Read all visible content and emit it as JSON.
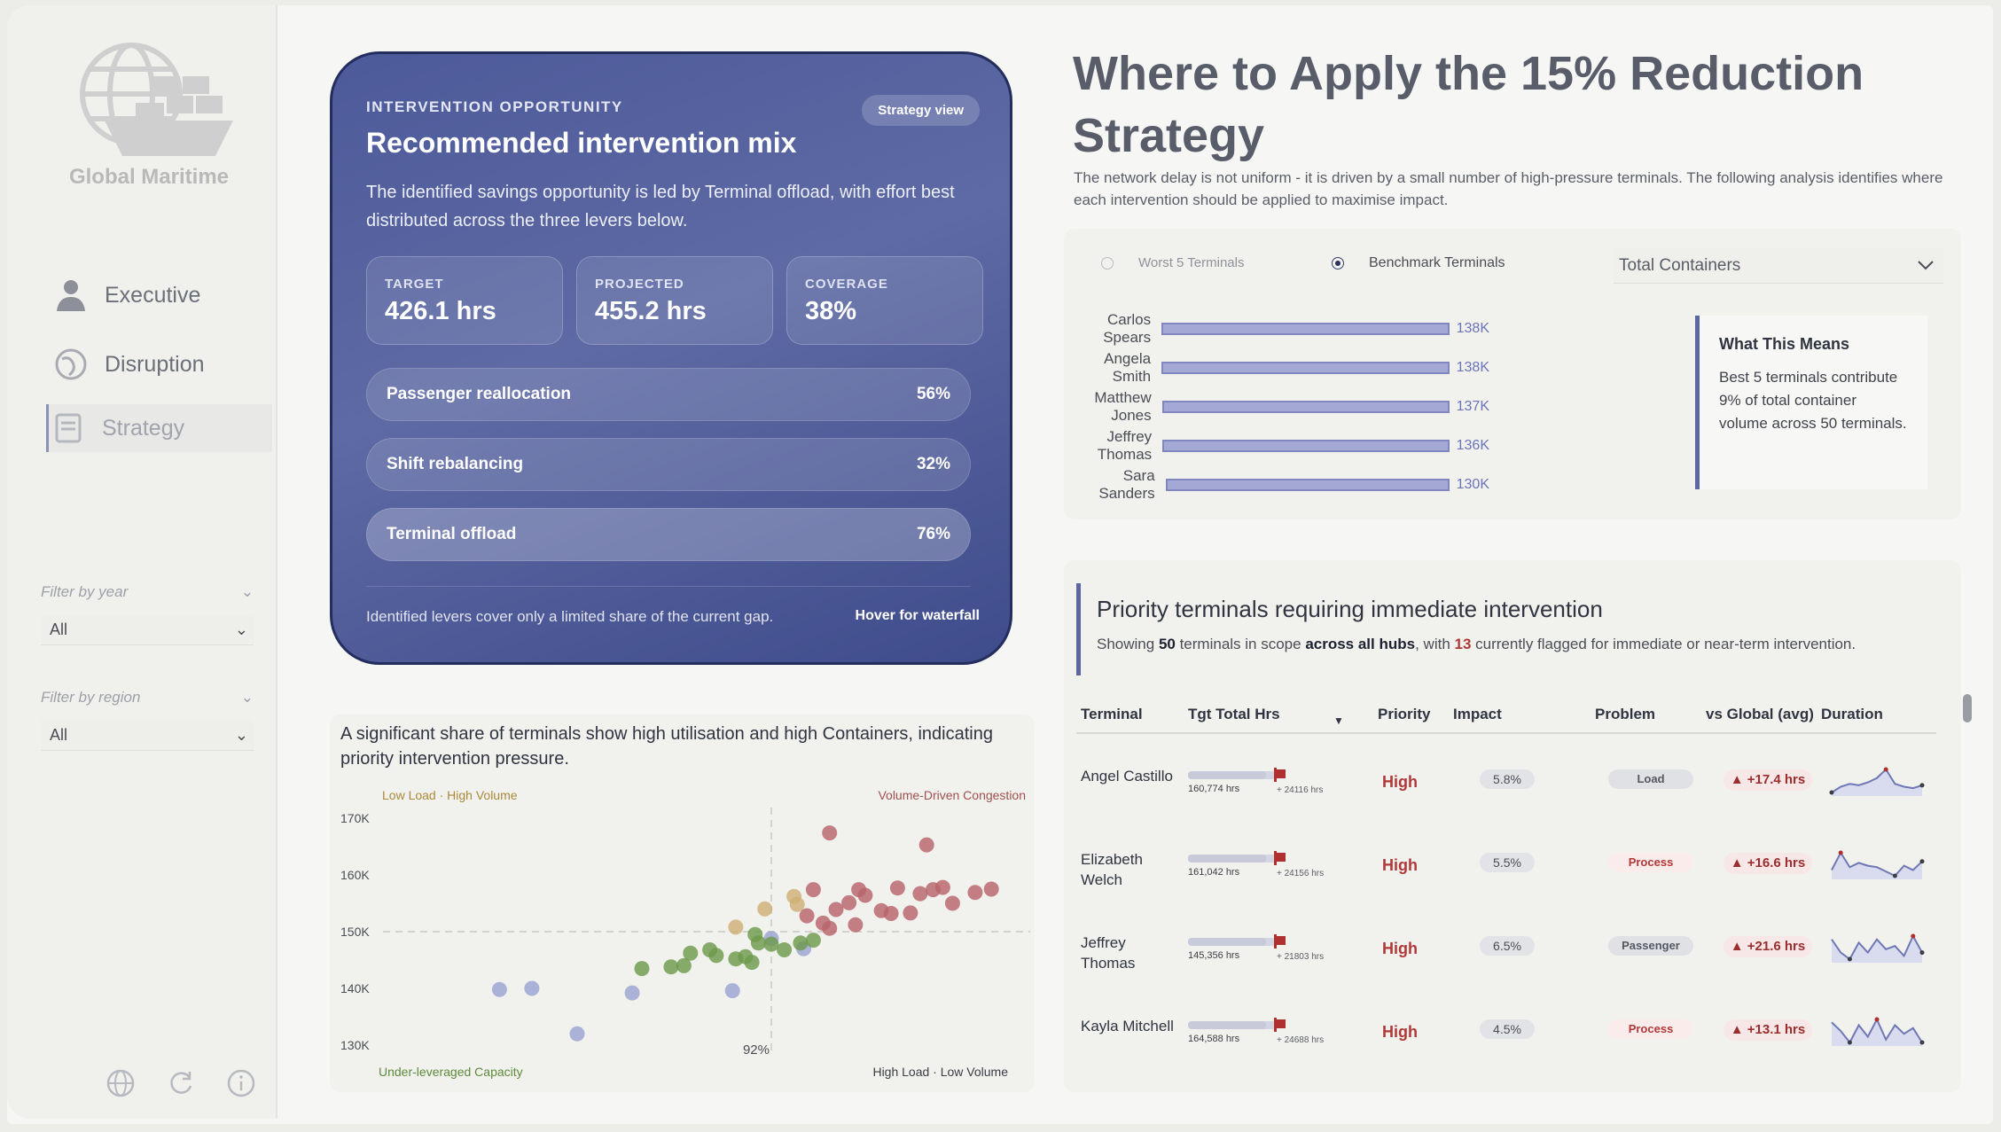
{
  "sidebar": {
    "brand": "Global Maritime",
    "nav": [
      {
        "label": "Executive",
        "icon": "person-icon"
      },
      {
        "label": "Disruption",
        "icon": "globe-icon"
      },
      {
        "label": "Strategy",
        "icon": "document-icon",
        "active": true
      }
    ],
    "filters": [
      {
        "label": "Filter by year",
        "value": "All"
      },
      {
        "label": "Filter by region",
        "value": "All"
      }
    ]
  },
  "intervention": {
    "kicker": "INTERVENTION OPPORTUNITY",
    "badge": "Strategy view",
    "title": "Recommended intervention mix",
    "description": "The identified savings opportunity is led by Terminal offload, with effort best distributed across the three levers below.",
    "kpis": [
      {
        "label": "TARGET",
        "value": "426.1 hrs"
      },
      {
        "label": "PROJECTED",
        "value": "455.2 hrs"
      },
      {
        "label": "COVERAGE",
        "value": "38%"
      }
    ],
    "levers": [
      {
        "label": "Passenger reallocation",
        "value": "56%"
      },
      {
        "label": "Shift rebalancing",
        "value": "32%"
      },
      {
        "label": "Terminal offload",
        "value": "76%"
      }
    ],
    "footnote": "Identified levers cover only a limited share of the current gap.",
    "footlink": "Hover for waterfall"
  },
  "scatter_title": "A significant share of terminals show high utilisation and high Containers, indicating priority intervention pressure.",
  "chart_data": {
    "type": "scatter",
    "quadrants": {
      "top_left": "Low Load · High Volume",
      "top_right": "Volume-Driven Congestion",
      "bottom_left": "Under-leveraged Capacity",
      "bottom_right": "High Load · Low Volume"
    },
    "y_ticks": [
      "170K",
      "160K",
      "150K",
      "140K",
      "130K"
    ],
    "ylim": [
      130000,
      170000
    ],
    "xlim": [
      80,
      100
    ],
    "threshold_x_label": "92%",
    "threshold_x": 92,
    "threshold_y": 150000,
    "colors": {
      "blue": "#9aa3d2",
      "green": "#6e9a4c",
      "gold": "#cfb078",
      "red": "#b8646c"
    },
    "points": [
      {
        "x": 83.6,
        "y": 139800,
        "c": "blue"
      },
      {
        "x": 84.6,
        "y": 140000,
        "c": "blue"
      },
      {
        "x": 86.0,
        "y": 132000,
        "c": "blue"
      },
      {
        "x": 87.7,
        "y": 139200,
        "c": "blue"
      },
      {
        "x": 90.8,
        "y": 139600,
        "c": "blue"
      },
      {
        "x": 92.0,
        "y": 148800,
        "c": "blue"
      },
      {
        "x": 93.0,
        "y": 147000,
        "c": "blue"
      },
      {
        "x": 88.0,
        "y": 143500,
        "c": "green"
      },
      {
        "x": 88.9,
        "y": 143800,
        "c": "green"
      },
      {
        "x": 89.3,
        "y": 144000,
        "c": "green"
      },
      {
        "x": 89.5,
        "y": 146200,
        "c": "green"
      },
      {
        "x": 90.1,
        "y": 146800,
        "c": "green"
      },
      {
        "x": 90.3,
        "y": 145800,
        "c": "green"
      },
      {
        "x": 90.9,
        "y": 145200,
        "c": "green"
      },
      {
        "x": 91.2,
        "y": 145600,
        "c": "green"
      },
      {
        "x": 91.4,
        "y": 144600,
        "c": "green"
      },
      {
        "x": 91.6,
        "y": 148000,
        "c": "green"
      },
      {
        "x": 91.5,
        "y": 149500,
        "c": "green"
      },
      {
        "x": 92.0,
        "y": 147800,
        "c": "green"
      },
      {
        "x": 92.4,
        "y": 146800,
        "c": "green"
      },
      {
        "x": 92.9,
        "y": 148000,
        "c": "green"
      },
      {
        "x": 93.3,
        "y": 148500,
        "c": "green"
      },
      {
        "x": 90.9,
        "y": 150800,
        "c": "gold"
      },
      {
        "x": 91.8,
        "y": 154000,
        "c": "gold"
      },
      {
        "x": 92.7,
        "y": 156200,
        "c": "gold"
      },
      {
        "x": 92.8,
        "y": 154800,
        "c": "gold"
      },
      {
        "x": 93.1,
        "y": 152800,
        "c": "red"
      },
      {
        "x": 93.3,
        "y": 157400,
        "c": "red"
      },
      {
        "x": 93.6,
        "y": 151500,
        "c": "red"
      },
      {
        "x": 93.8,
        "y": 150600,
        "c": "red"
      },
      {
        "x": 94.0,
        "y": 153900,
        "c": "red"
      },
      {
        "x": 94.4,
        "y": 155100,
        "c": "red"
      },
      {
        "x": 94.6,
        "y": 151200,
        "c": "red"
      },
      {
        "x": 94.7,
        "y": 157400,
        "c": "red"
      },
      {
        "x": 94.9,
        "y": 156400,
        "c": "red"
      },
      {
        "x": 95.4,
        "y": 153700,
        "c": "red"
      },
      {
        "x": 95.7,
        "y": 153200,
        "c": "red"
      },
      {
        "x": 95.9,
        "y": 157700,
        "c": "red"
      },
      {
        "x": 96.3,
        "y": 153300,
        "c": "red"
      },
      {
        "x": 96.6,
        "y": 156700,
        "c": "red"
      },
      {
        "x": 97.0,
        "y": 157400,
        "c": "red"
      },
      {
        "x": 97.3,
        "y": 157800,
        "c": "red"
      },
      {
        "x": 97.6,
        "y": 155000,
        "c": "red"
      },
      {
        "x": 98.3,
        "y": 156900,
        "c": "red"
      },
      {
        "x": 98.8,
        "y": 157500,
        "c": "red"
      },
      {
        "x": 93.8,
        "y": 167400,
        "c": "red"
      },
      {
        "x": 96.8,
        "y": 165300,
        "c": "red"
      }
    ]
  },
  "header": {
    "title": "Where to Apply the 15% Reduction Strategy",
    "subtitle": "The network delay is not uniform - it is driven by a small number of high-pressure terminals.   The following analysis identifies where each intervention should be applied to maximise impact."
  },
  "benchmark": {
    "options": [
      {
        "label": "Worst 5 Terminals",
        "selected": false
      },
      {
        "label": "Benchmark Terminals",
        "selected": true
      }
    ],
    "metric": "Total Containers",
    "bars_max": 138,
    "bars": [
      {
        "name": "Carlos Spears",
        "value": 138,
        "label": "138K"
      },
      {
        "name": "Angela Smith",
        "value": 138,
        "label": "138K"
      },
      {
        "name": "Matthew Jones",
        "value": 137,
        "label": "137K"
      },
      {
        "name": "Jeffrey Thomas",
        "value": 136,
        "label": "136K"
      },
      {
        "name": "Sara Sanders",
        "value": 130,
        "label": "130K"
      }
    ],
    "means_title": "What This Means",
    "means_text": "Best 5 terminals contribute 9% of total container volume across 50 terminals."
  },
  "priority": {
    "title": "Priority terminals requiring immediate intervention",
    "sub_1": "Showing ",
    "sub_count": "50",
    "sub_2": " terminals in scope ",
    "sub_scope": "across all hubs",
    "sub_3": ", with ",
    "sub_flagged": "13",
    "sub_4": " currently flagged for immediate or near-term intervention.",
    "columns": [
      "Terminal",
      "Tgt Total Hrs",
      "Priority",
      "Impact",
      "Problem",
      "vs Global (avg)",
      "Duration"
    ],
    "rows": [
      {
        "terminal": "Angel Castillo",
        "hrs": "160,774 hrs",
        "plus": "+ 24116 hrs",
        "priority": "High",
        "impact": "5.8%",
        "problem": "Load",
        "ptype": "grey",
        "vs": "▲ +17.4 hrs",
        "spark": [
          8,
          12,
          14,
          13,
          15,
          18,
          24,
          14,
          12,
          11,
          13
        ]
      },
      {
        "terminal": "Elizabeth Welch",
        "hrs": "161,042 hrs",
        "plus": "+ 24156 hrs",
        "priority": "High",
        "impact": "5.5%",
        "problem": "Process",
        "ptype": "pink",
        "vs": "▲ +16.6 hrs",
        "spark": [
          12,
          24,
          14,
          17,
          15,
          14,
          11,
          8,
          15,
          12,
          18
        ]
      },
      {
        "terminal": "Jeffrey Thomas",
        "hrs": "145,356 hrs",
        "plus": "+ 21803 hrs",
        "priority": "High",
        "impact": "6.5%",
        "problem": "Passenger",
        "ptype": "grey",
        "vs": "▲ +21.6 hrs",
        "spark": [
          20,
          12,
          8,
          18,
          12,
          20,
          14,
          16,
          10,
          22,
          12
        ]
      },
      {
        "terminal": "Kayla Mitchell",
        "hrs": "164,588 hrs",
        "plus": "+ 24688 hrs",
        "priority": "High",
        "impact": "4.5%",
        "problem": "Process",
        "ptype": "pink",
        "vs": "▲ +13.1 hrs",
        "spark": [
          22,
          16,
          8,
          20,
          12,
          24,
          10,
          20,
          14,
          18,
          8
        ]
      }
    ]
  }
}
